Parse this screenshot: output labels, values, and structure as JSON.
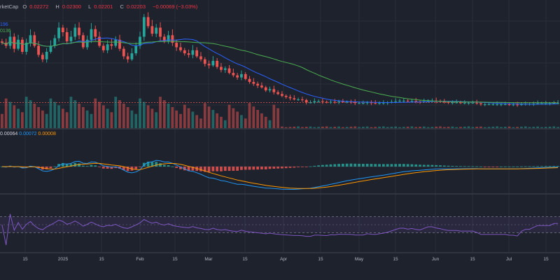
{
  "header": {
    "symbol_fragment": "rketCap",
    "open_label": "O",
    "open": "0.02272",
    "high_label": "H",
    "high": "0.02300",
    "low_label": "L",
    "low": "0.02201",
    "close_label": "C",
    "close": "0.02203",
    "change": "−0.00069 (−3.03%)"
  },
  "ma_legend": {
    "ma1_value": "196",
    "ma2_value": "0136"
  },
  "macd_legend": {
    "v1": "0.00064",
    "v2": "0.00072",
    "v3": "0.00008"
  },
  "colors": {
    "up": "#26a69a",
    "down": "#ef5350",
    "ma_blue": "#2962ff",
    "ma_green": "#4caf50",
    "macd_line": "#2196f3",
    "signal_line": "#ff9800",
    "rsi_line": "#7e57c2",
    "rsi_band": "#7e57c2"
  },
  "x_axis": {
    "labels": [
      "15",
      "2025",
      "15",
      "Feb",
      "15",
      "Mar",
      "15",
      "Apr",
      "15",
      "May",
      "15",
      "Jun",
      "15",
      "Jul",
      "15"
    ]
  },
  "chart_data": {
    "type": "candlestick",
    "x_labels": [
      "15",
      "2025",
      "15",
      "Feb",
      "15",
      "Mar",
      "15",
      "Apr",
      "15",
      "May",
      "15",
      "Jun",
      "15",
      "Jul",
      "15"
    ],
    "price_close": [
      0.042,
      0.041,
      0.044,
      0.04,
      0.043,
      0.039,
      0.042,
      0.0445,
      0.041,
      0.038,
      0.0365,
      0.039,
      0.041,
      0.0435,
      0.047,
      0.0455,
      0.0425,
      0.044,
      0.047,
      0.0445,
      0.0405,
      0.043,
      0.0465,
      0.044,
      0.041,
      0.0395,
      0.0415,
      0.041,
      0.043,
      0.04,
      0.0375,
      0.0365,
      0.0385,
      0.041,
      0.044,
      0.0505,
      0.0475,
      0.045,
      0.047,
      0.044,
      0.0425,
      0.0445,
      0.042,
      0.0405,
      0.0395,
      0.0385,
      0.038,
      0.0395,
      0.0375,
      0.0365,
      0.035,
      0.0345,
      0.036,
      0.034,
      0.033,
      0.0335,
      0.032,
      0.0312,
      0.0305,
      0.0316,
      0.03,
      0.029,
      0.0284,
      0.0278,
      0.0272,
      0.0262,
      0.0266,
      0.0256,
      0.025,
      0.0244,
      0.024,
      0.0236,
      0.0232,
      0.0232,
      0.023,
      0.0222,
      0.0222,
      0.0226,
      0.0226,
      0.0224,
      0.0222,
      0.0224,
      0.0223,
      0.0225,
      0.0224,
      0.0224,
      0.0223,
      0.022,
      0.022,
      0.022,
      0.0222,
      0.022,
      0.0219,
      0.022,
      0.0221,
      0.0222,
      0.0224,
      0.0226,
      0.0228,
      0.0228,
      0.0226,
      0.0227,
      0.0225,
      0.0224,
      0.0226,
      0.0228,
      0.0228,
      0.0226,
      0.0225,
      0.0223,
      0.0222,
      0.0222,
      0.0222,
      0.0221,
      0.0221,
      0.0221,
      0.0221,
      0.0219,
      0.0216,
      0.0216,
      0.0216,
      0.0216,
      0.0216,
      0.0216,
      0.0216,
      0.0215,
      0.0215,
      0.0214,
      0.0216,
      0.0217,
      0.0217,
      0.0218,
      0.0219,
      0.0219,
      0.0219,
      0.0219,
      0.022,
      0.022
    ]
  }
}
